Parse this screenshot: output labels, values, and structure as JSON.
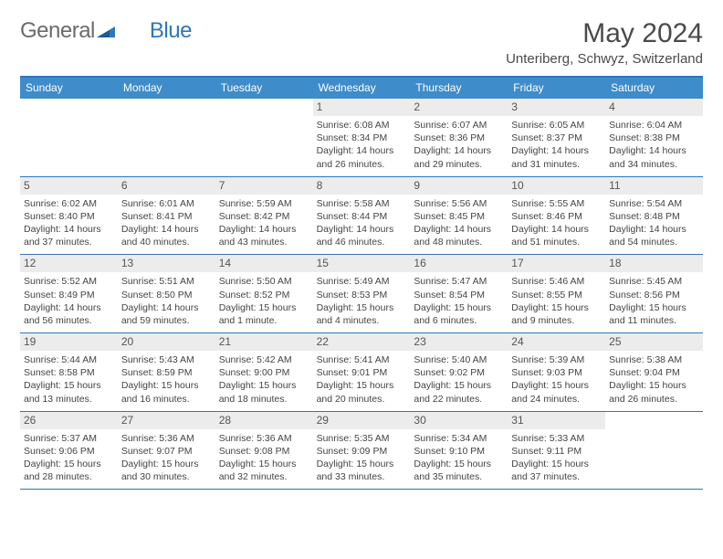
{
  "logo": {
    "general": "General",
    "blue": "Blue"
  },
  "title": "May 2024",
  "location": "Unteriberg, Schwyz, Switzerland",
  "colors": {
    "header_bar": "#3e8cc9",
    "border": "#2f77b7",
    "daynum_bg": "#ececec",
    "text": "#444444",
    "logo_gray": "#6b6b6b",
    "logo_blue": "#2f77b7"
  },
  "weekday_labels": [
    "Sunday",
    "Monday",
    "Tuesday",
    "Wednesday",
    "Thursday",
    "Friday",
    "Saturday"
  ],
  "weeks": [
    [
      null,
      null,
      null,
      {
        "n": "1",
        "sunrise": "6:08 AM",
        "sunset": "8:34 PM",
        "daylight": "14 hours and 26 minutes."
      },
      {
        "n": "2",
        "sunrise": "6:07 AM",
        "sunset": "8:36 PM",
        "daylight": "14 hours and 29 minutes."
      },
      {
        "n": "3",
        "sunrise": "6:05 AM",
        "sunset": "8:37 PM",
        "daylight": "14 hours and 31 minutes."
      },
      {
        "n": "4",
        "sunrise": "6:04 AM",
        "sunset": "8:38 PM",
        "daylight": "14 hours and 34 minutes."
      }
    ],
    [
      {
        "n": "5",
        "sunrise": "6:02 AM",
        "sunset": "8:40 PM",
        "daylight": "14 hours and 37 minutes."
      },
      {
        "n": "6",
        "sunrise": "6:01 AM",
        "sunset": "8:41 PM",
        "daylight": "14 hours and 40 minutes."
      },
      {
        "n": "7",
        "sunrise": "5:59 AM",
        "sunset": "8:42 PM",
        "daylight": "14 hours and 43 minutes."
      },
      {
        "n": "8",
        "sunrise": "5:58 AM",
        "sunset": "8:44 PM",
        "daylight": "14 hours and 46 minutes."
      },
      {
        "n": "9",
        "sunrise": "5:56 AM",
        "sunset": "8:45 PM",
        "daylight": "14 hours and 48 minutes."
      },
      {
        "n": "10",
        "sunrise": "5:55 AM",
        "sunset": "8:46 PM",
        "daylight": "14 hours and 51 minutes."
      },
      {
        "n": "11",
        "sunrise": "5:54 AM",
        "sunset": "8:48 PM",
        "daylight": "14 hours and 54 minutes."
      }
    ],
    [
      {
        "n": "12",
        "sunrise": "5:52 AM",
        "sunset": "8:49 PM",
        "daylight": "14 hours and 56 minutes."
      },
      {
        "n": "13",
        "sunrise": "5:51 AM",
        "sunset": "8:50 PM",
        "daylight": "14 hours and 59 minutes."
      },
      {
        "n": "14",
        "sunrise": "5:50 AM",
        "sunset": "8:52 PM",
        "daylight": "15 hours and 1 minute."
      },
      {
        "n": "15",
        "sunrise": "5:49 AM",
        "sunset": "8:53 PM",
        "daylight": "15 hours and 4 minutes."
      },
      {
        "n": "16",
        "sunrise": "5:47 AM",
        "sunset": "8:54 PM",
        "daylight": "15 hours and 6 minutes."
      },
      {
        "n": "17",
        "sunrise": "5:46 AM",
        "sunset": "8:55 PM",
        "daylight": "15 hours and 9 minutes."
      },
      {
        "n": "18",
        "sunrise": "5:45 AM",
        "sunset": "8:56 PM",
        "daylight": "15 hours and 11 minutes."
      }
    ],
    [
      {
        "n": "19",
        "sunrise": "5:44 AM",
        "sunset": "8:58 PM",
        "daylight": "15 hours and 13 minutes."
      },
      {
        "n": "20",
        "sunrise": "5:43 AM",
        "sunset": "8:59 PM",
        "daylight": "15 hours and 16 minutes."
      },
      {
        "n": "21",
        "sunrise": "5:42 AM",
        "sunset": "9:00 PM",
        "daylight": "15 hours and 18 minutes."
      },
      {
        "n": "22",
        "sunrise": "5:41 AM",
        "sunset": "9:01 PM",
        "daylight": "15 hours and 20 minutes."
      },
      {
        "n": "23",
        "sunrise": "5:40 AM",
        "sunset": "9:02 PM",
        "daylight": "15 hours and 22 minutes."
      },
      {
        "n": "24",
        "sunrise": "5:39 AM",
        "sunset": "9:03 PM",
        "daylight": "15 hours and 24 minutes."
      },
      {
        "n": "25",
        "sunrise": "5:38 AM",
        "sunset": "9:04 PM",
        "daylight": "15 hours and 26 minutes."
      }
    ],
    [
      {
        "n": "26",
        "sunrise": "5:37 AM",
        "sunset": "9:06 PM",
        "daylight": "15 hours and 28 minutes."
      },
      {
        "n": "27",
        "sunrise": "5:36 AM",
        "sunset": "9:07 PM",
        "daylight": "15 hours and 30 minutes."
      },
      {
        "n": "28",
        "sunrise": "5:36 AM",
        "sunset": "9:08 PM",
        "daylight": "15 hours and 32 minutes."
      },
      {
        "n": "29",
        "sunrise": "5:35 AM",
        "sunset": "9:09 PM",
        "daylight": "15 hours and 33 minutes."
      },
      {
        "n": "30",
        "sunrise": "5:34 AM",
        "sunset": "9:10 PM",
        "daylight": "15 hours and 35 minutes."
      },
      {
        "n": "31",
        "sunrise": "5:33 AM",
        "sunset": "9:11 PM",
        "daylight": "15 hours and 37 minutes."
      },
      null
    ]
  ],
  "labels": {
    "sunrise": "Sunrise:",
    "sunset": "Sunset:",
    "daylight": "Daylight:"
  }
}
